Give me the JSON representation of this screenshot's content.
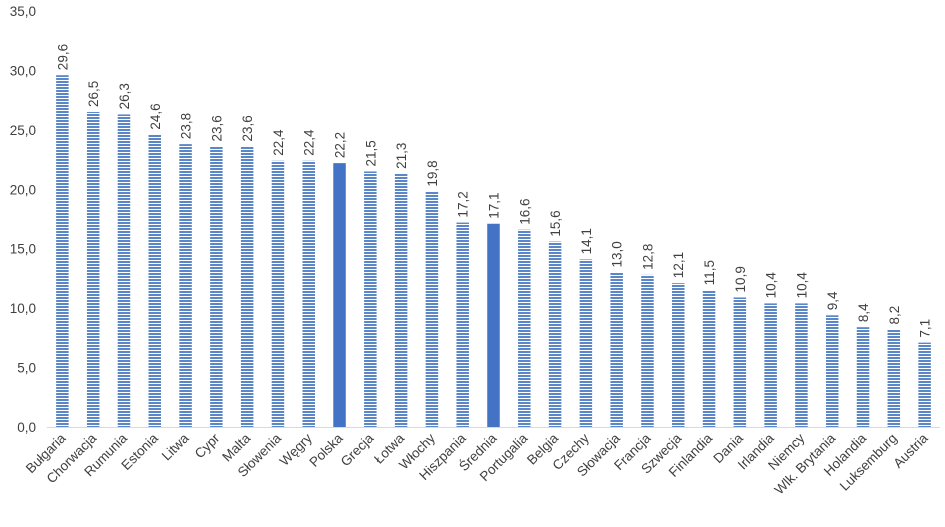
{
  "chart_data": {
    "type": "bar",
    "categories": [
      "Bułgaria",
      "Chorwacja",
      "Rumunia",
      "Estonia",
      "Litwa",
      "Cypr",
      "Malta",
      "Słowenia",
      "Węgry",
      "Polska",
      "Grecja",
      "Łotwa",
      "Włochy",
      "Hiszpania",
      "Średnia",
      "Portugalia",
      "Belgia",
      "Czechy",
      "Słowacja",
      "Francja",
      "Szwecja",
      "Finlandia",
      "Dania",
      "Irlandia",
      "Niemcy",
      "Wlk. Brytania",
      "Holandia",
      "Luksemburg",
      "Austria"
    ],
    "values": [
      29.6,
      26.5,
      26.3,
      24.6,
      23.8,
      23.6,
      23.6,
      22.4,
      22.4,
      22.2,
      21.5,
      21.3,
      19.8,
      17.2,
      17.1,
      16.6,
      15.6,
      14.1,
      13.0,
      12.8,
      12.1,
      11.5,
      10.9,
      10.4,
      10.4,
      9.4,
      8.4,
      8.2,
      7.1
    ],
    "value_labels": [
      "29,6",
      "26,5",
      "26,3",
      "24,6",
      "23,8",
      "23,6",
      "23,6",
      "22,4",
      "22,4",
      "22,2",
      "21,5",
      "21,3",
      "19,8",
      "17,2",
      "17,1",
      "16,6",
      "15,6",
      "14,1",
      "13,0",
      "12,8",
      "12,1",
      "11,5",
      "10,9",
      "10,4",
      "10,4",
      "9,4",
      "8,4",
      "8,2",
      "7,1"
    ],
    "highlighted": [
      "Polska",
      "Średnia"
    ],
    "y_ticks": [
      0,
      5,
      10,
      15,
      20,
      25,
      30,
      35
    ],
    "y_tick_labels": [
      "0,0",
      "5,0",
      "10,0",
      "15,0",
      "20,0",
      "25,0",
      "30,0",
      "35,0"
    ],
    "ylim": [
      0,
      35
    ],
    "title": "",
    "xlabel": "",
    "ylabel": "",
    "grid": false,
    "colors": {
      "bar_stripe": "#5b87c8",
      "bar_gap": "#ffffff",
      "highlight": "#4472c4",
      "axis": "#d9d9d9",
      "text": "#404040"
    }
  }
}
